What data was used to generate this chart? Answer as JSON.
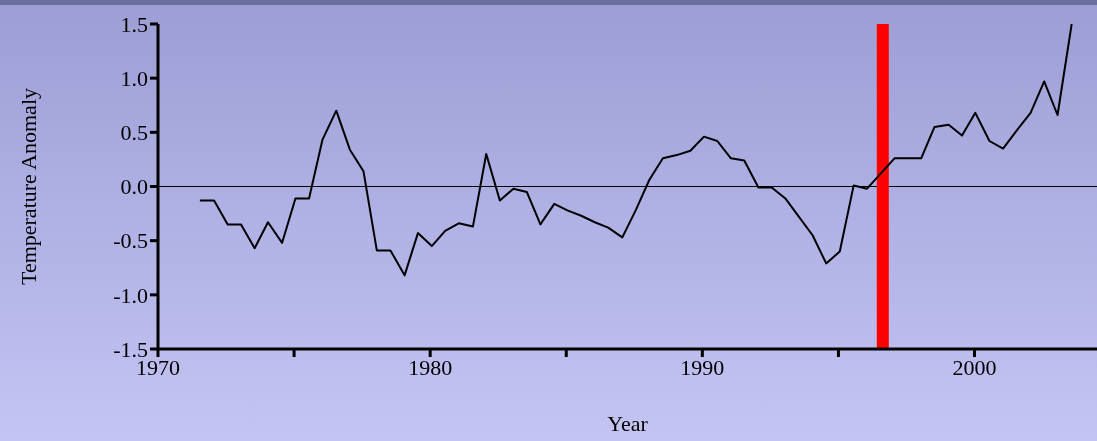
{
  "chart_data": {
    "type": "line",
    "xlabel": "Year",
    "ylabel": "Temperature Anomaly",
    "x": [
      1971.54,
      1972.06,
      1972.56,
      1973.05,
      1973.55,
      1974.04,
      1974.56,
      1975.05,
      1975.55,
      1976.04,
      1976.55,
      1977.05,
      1977.55,
      1978.04,
      1978.54,
      1979.06,
      1979.55,
      1980.06,
      1980.55,
      1981.05,
      1981.57,
      1982.06,
      1982.56,
      1983.06,
      1983.55,
      1984.05,
      1984.56,
      1985.04,
      1985.55,
      1986.05,
      1986.54,
      1987.06,
      1987.55,
      1988.05,
      1988.55,
      1989.06,
      1989.56,
      1990.06,
      1990.55,
      1991.05,
      1991.54,
      1992.06,
      1992.55,
      1993.05,
      1993.55,
      1994.05,
      1994.55,
      1995.05,
      1995.56,
      1996.05,
      1997.06,
      1998.04,
      1998.53,
      1999.05,
      1999.54,
      2000.03,
      2000.55,
      2001.05,
      2001.56,
      2002.06,
      2002.56,
      2003.05,
      2003.57
    ],
    "series": [
      {
        "color": "#000000",
        "values": [
          -0.13,
          -0.13,
          -0.35,
          -0.35,
          -0.57,
          -0.33,
          -0.52,
          -0.11,
          -0.11,
          0.43,
          0.7,
          0.34,
          0.14,
          -0.59,
          -0.59,
          -0.82,
          -0.43,
          -0.55,
          -0.41,
          -0.34,
          -0.37,
          0.3,
          -0.13,
          -0.02,
          -0.05,
          -0.35,
          -0.16,
          -0.22,
          -0.27,
          -0.33,
          -0.38,
          -0.47,
          -0.22,
          0.06,
          0.26,
          0.29,
          0.33,
          0.46,
          0.42,
          0.26,
          0.24,
          -0.01,
          -0.01,
          -0.11,
          -0.28,
          -0.45,
          -0.71,
          -0.6,
          0.01,
          -0.02,
          0.26,
          0.26,
          0.55,
          0.57,
          0.47,
          0.68,
          0.42,
          0.35,
          0.52,
          0.68,
          0.97,
          0.66,
          1.5
        ]
      }
    ],
    "xlim": [
      1970,
      2004.5
    ],
    "xticks": [
      1970,
      {
        "value": 1975,
        "label": null
      },
      1980,
      {
        "value": 1985,
        "label": null
      },
      1990,
      {
        "value": 1995,
        "label": null
      },
      2000
    ],
    "ylim": [
      -1.5,
      1.5
    ],
    "yticks": [
      {
        "value": -1.5,
        "label": "-1.5"
      },
      {
        "value": -1,
        "label": "-1.0"
      },
      {
        "value": -0.5,
        "label": "-0.5"
      },
      {
        "value": 0,
        "label": "0.0"
      },
      {
        "value": 0.5,
        "label": "0.5"
      },
      {
        "value": 1,
        "label": "1.0"
      },
      {
        "value": 1.5,
        "label": "1.5"
      }
    ],
    "ref_lines": [
      {
        "axis": "y",
        "value": 0,
        "color": "#000000"
      },
      {
        "axis": "x",
        "value": 1996.63,
        "color": "#ff0000"
      }
    ],
    "grid": false,
    "legend": false,
    "marker": "none",
    "line_style": "solid"
  }
}
